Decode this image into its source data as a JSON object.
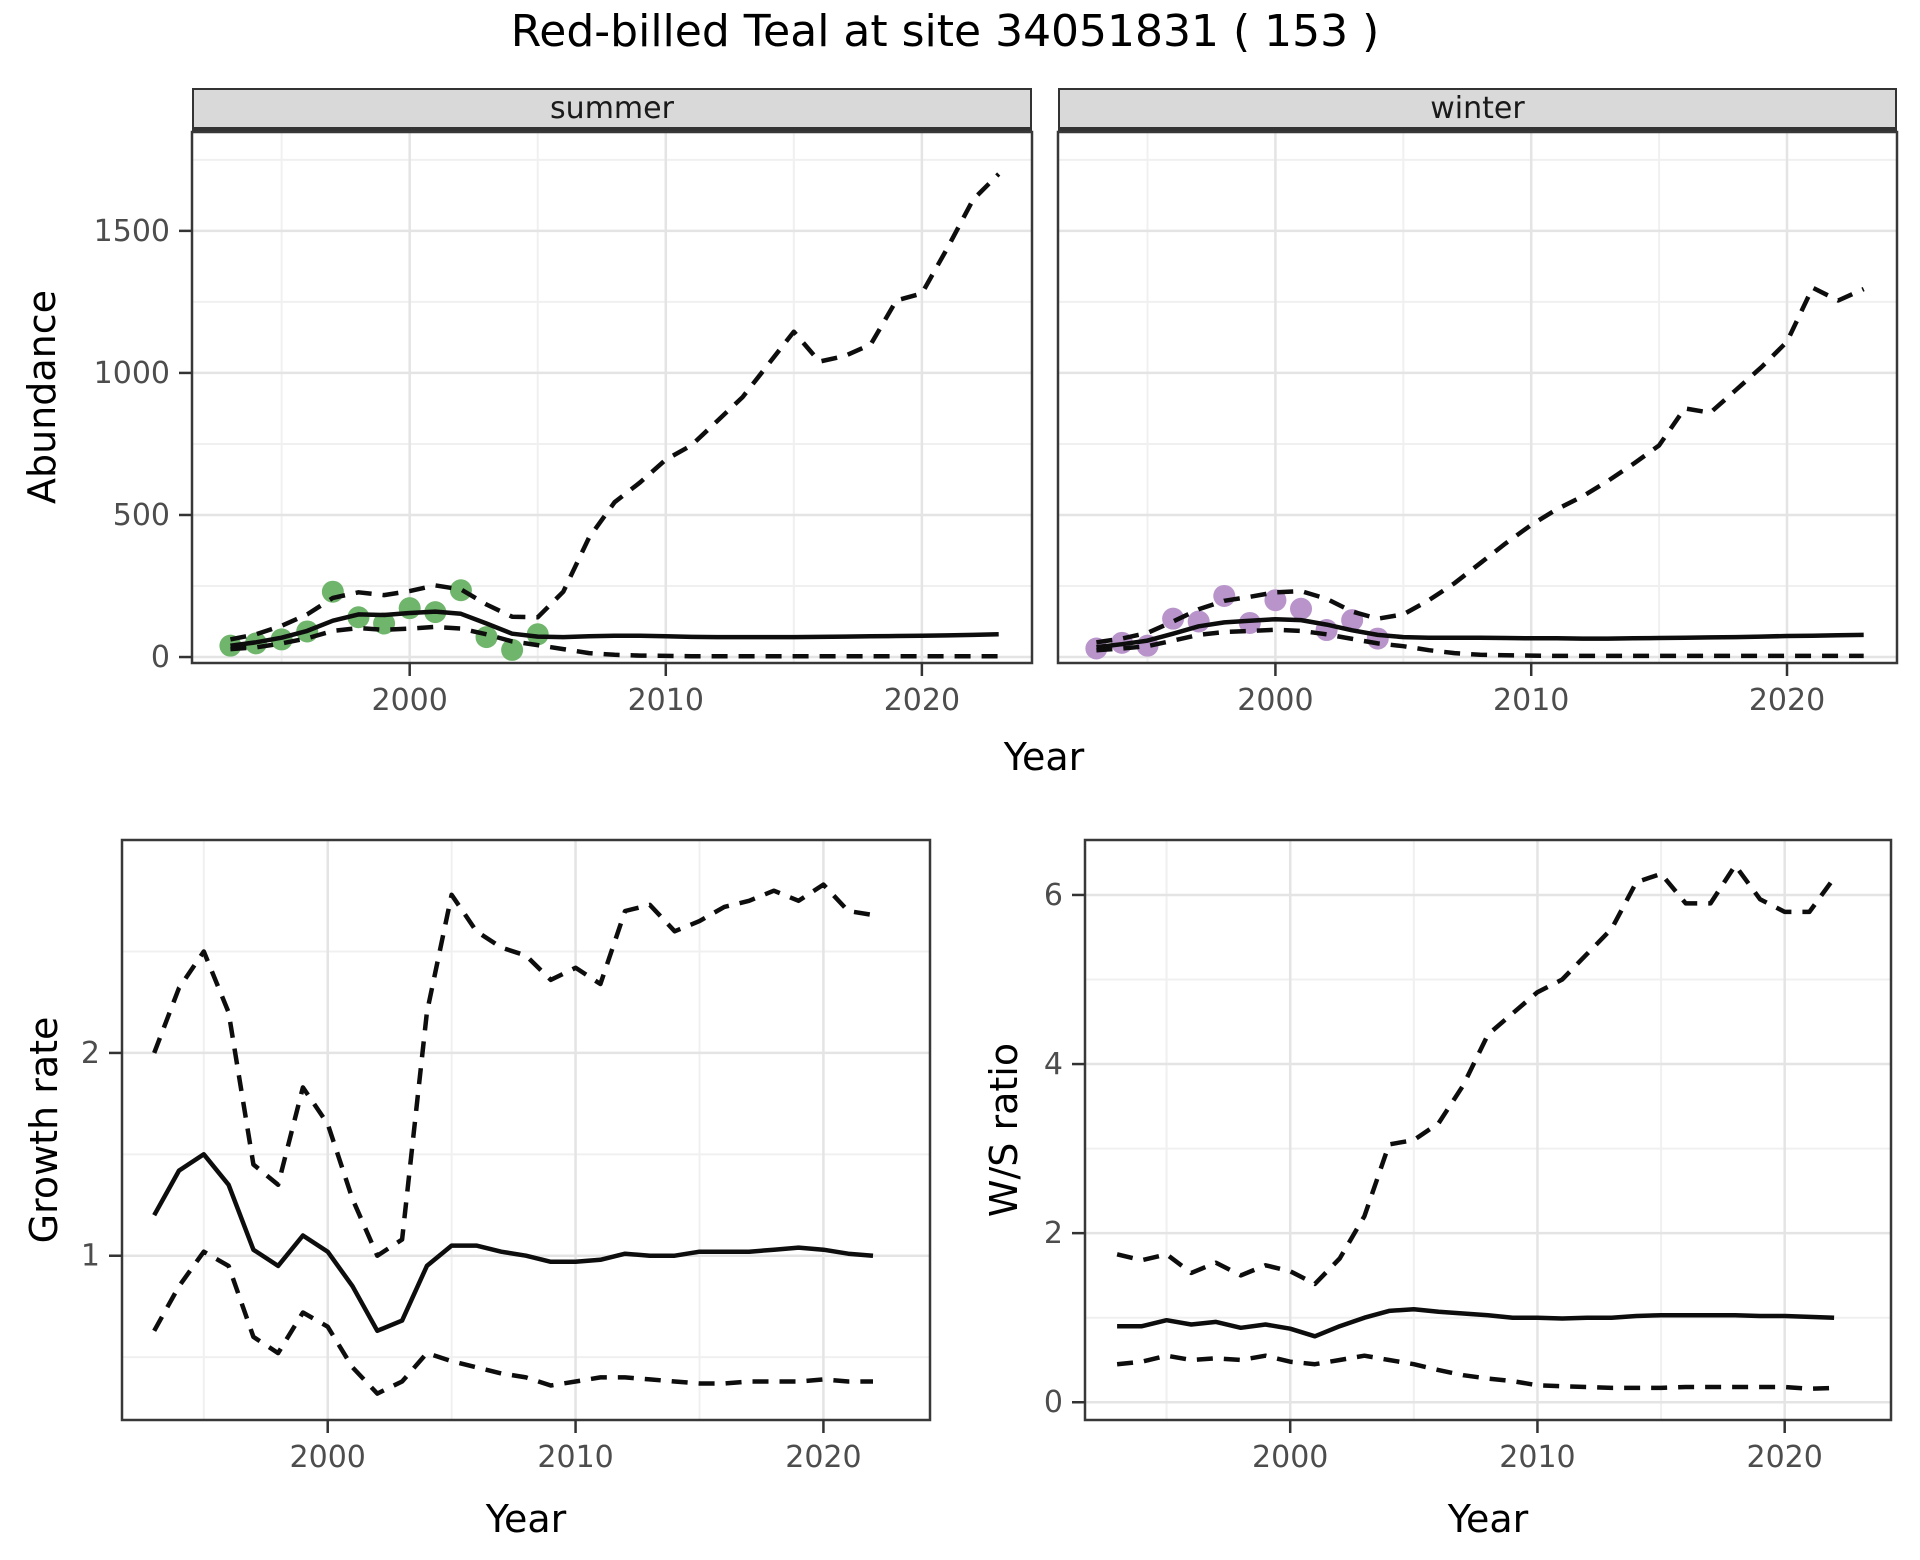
{
  "title": "Red-billed Teal at site 34051831 ( 153 )",
  "labels": {
    "x_axis": "Year"
  },
  "colors": {
    "summer_points": "#6FB56B",
    "winter_points": "#B894CB",
    "line": "#0d0d0d",
    "grid_major": "#e4e4e4",
    "grid_minor": "#f0f0f0",
    "panel_border": "#383838",
    "tick_text": "#4d4d4d",
    "strip_bg": "#d9d9d9"
  },
  "chart_data": [
    {
      "id": "abundance_summer",
      "type": "line",
      "facet": "summer",
      "xlabel": "Year",
      "ylabel": "Abundance",
      "xlim": [
        1991.5,
        2024.3
      ],
      "ylim": [
        -21,
        1848
      ],
      "xticks": [
        2000,
        2010,
        2020
      ],
      "xminor": [
        1995,
        2005,
        2015
      ],
      "yticks": [
        0,
        500,
        1000,
        1500
      ],
      "yminor": [
        250,
        750,
        1250,
        1750
      ],
      "x": [
        1993,
        1994,
        1995,
        1996,
        1997,
        1998,
        1999,
        2000,
        2001,
        2002,
        2003,
        2004,
        2005,
        2006,
        2007,
        2008,
        2009,
        2010,
        2011,
        2012,
        2013,
        2014,
        2015,
        2016,
        2017,
        2018,
        2019,
        2020,
        2021,
        2022,
        2023
      ],
      "series": [
        {
          "name": "fit",
          "style": "solid",
          "values": [
            40,
            52,
            68,
            92,
            128,
            150,
            148,
            155,
            160,
            152,
            118,
            82,
            72,
            70,
            73,
            75,
            75,
            73,
            71,
            70,
            70,
            70,
            70,
            71,
            72,
            73,
            74,
            75,
            76,
            78,
            80
          ]
        },
        {
          "name": "upper_ci",
          "style": "dashed",
          "values": [
            62,
            80,
            110,
            150,
            208,
            228,
            218,
            232,
            252,
            238,
            185,
            142,
            140,
            230,
            420,
            545,
            615,
            695,
            745,
            830,
            915,
            1030,
            1145,
            1040,
            1060,
            1100,
            1255,
            1280,
            1440,
            1610,
            1700
          ]
        },
        {
          "name": "lower_ci",
          "style": "dashed",
          "values": [
            28,
            34,
            48,
            66,
            92,
            102,
            96,
            100,
            106,
            100,
            80,
            55,
            42,
            28,
            14,
            8,
            5,
            4,
            3,
            3,
            3,
            3,
            3,
            3,
            3,
            3,
            3,
            3,
            3,
            3,
            3
          ]
        }
      ],
      "points": {
        "name": "observed-summer",
        "color": "#6FB56B",
        "x": [
          1993,
          1994,
          1995,
          1996,
          1997,
          1998,
          1999,
          2000,
          2001,
          2002,
          2003,
          2004,
          2005
        ],
        "y": [
          40,
          48,
          62,
          90,
          230,
          140,
          118,
          172,
          158,
          235,
          70,
          25,
          80
        ]
      }
    },
    {
      "id": "abundance_winter",
      "type": "line",
      "facet": "winter",
      "xlabel": "Year",
      "ylabel": "Abundance",
      "xlim": [
        1991.5,
        2024.3
      ],
      "ylim": [
        -21,
        1848
      ],
      "xticks": [
        2000,
        2010,
        2020
      ],
      "xminor": [
        1995,
        2005,
        2015
      ],
      "yticks": [
        0,
        500,
        1000,
        1500
      ],
      "yminor": [
        250,
        750,
        1250,
        1750
      ],
      "x": [
        1993,
        1994,
        1995,
        1996,
        1997,
        1998,
        1999,
        2000,
        2001,
        2002,
        2003,
        2004,
        2005,
        2006,
        2007,
        2008,
        2009,
        2010,
        2011,
        2012,
        2013,
        2014,
        2015,
        2016,
        2017,
        2018,
        2019,
        2020,
        2021,
        2022,
        2023
      ],
      "series": [
        {
          "name": "fit",
          "style": "solid",
          "values": [
            35,
            45,
            58,
            82,
            108,
            122,
            128,
            133,
            130,
            114,
            94,
            78,
            70,
            68,
            68,
            68,
            67,
            66,
            66,
            65,
            65,
            66,
            67,
            68,
            69,
            70,
            72,
            74,
            75,
            77,
            78
          ]
        },
        {
          "name": "upper_ci",
          "style": "dashed",
          "values": [
            52,
            65,
            85,
            125,
            168,
            198,
            212,
            228,
            232,
            205,
            160,
            135,
            150,
            200,
            260,
            330,
            400,
            465,
            520,
            565,
            620,
            680,
            745,
            875,
            860,
            940,
            1020,
            1110,
            1300,
            1255,
            1295
          ]
        },
        {
          "name": "lower_ci",
          "style": "dashed",
          "values": [
            24,
            30,
            38,
            58,
            78,
            88,
            92,
            96,
            92,
            80,
            64,
            48,
            38,
            24,
            14,
            8,
            6,
            5,
            4,
            4,
            4,
            4,
            4,
            4,
            4,
            4,
            4,
            4,
            4,
            4,
            4
          ]
        }
      ],
      "points": {
        "name": "observed-winter",
        "color": "#B894CB",
        "x": [
          1993,
          1994,
          1995,
          1996,
          1997,
          1998,
          1999,
          2000,
          2001,
          2002,
          2003,
          2004
        ],
        "y": [
          30,
          50,
          40,
          135,
          125,
          215,
          120,
          200,
          170,
          95,
          130,
          65
        ]
      }
    },
    {
      "id": "growth_rate",
      "type": "line",
      "facet": null,
      "xlabel": "Year",
      "ylabel": "Growth rate",
      "xlim": [
        1991.7,
        2024.3
      ],
      "ylim": [
        0.19,
        3.05
      ],
      "xticks": [
        2000,
        2010,
        2020
      ],
      "xminor": [
        1995,
        2005,
        2015
      ],
      "yticks": [
        1,
        2
      ],
      "yminor": [
        0.5,
        1.5,
        2.5
      ],
      "x": [
        1993,
        1994,
        1995,
        1996,
        1997,
        1998,
        1999,
        2000,
        2001,
        2002,
        2003,
        2004,
        2005,
        2006,
        2007,
        2008,
        2009,
        2010,
        2011,
        2012,
        2013,
        2014,
        2015,
        2016,
        2017,
        2018,
        2019,
        2020,
        2021,
        2022
      ],
      "series": [
        {
          "name": "fit",
          "style": "solid",
          "values": [
            1.2,
            1.42,
            1.5,
            1.35,
            1.03,
            0.95,
            1.1,
            1.02,
            0.85,
            0.63,
            0.68,
            0.95,
            1.05,
            1.05,
            1.02,
            1.0,
            0.97,
            0.97,
            0.98,
            1.01,
            1.0,
            1.0,
            1.02,
            1.02,
            1.02,
            1.03,
            1.04,
            1.03,
            1.01,
            1.0
          ]
        },
        {
          "name": "upper_ci",
          "style": "dashed",
          "values": [
            2.0,
            2.32,
            2.5,
            2.2,
            1.45,
            1.35,
            1.83,
            1.65,
            1.28,
            1.0,
            1.08,
            2.2,
            2.78,
            2.6,
            2.52,
            2.48,
            2.36,
            2.42,
            2.34,
            2.7,
            2.73,
            2.6,
            2.65,
            2.72,
            2.75,
            2.8,
            2.75,
            2.83,
            2.7,
            2.68
          ]
        },
        {
          "name": "lower_ci",
          "style": "dashed",
          "values": [
            0.63,
            0.85,
            1.02,
            0.95,
            0.6,
            0.52,
            0.72,
            0.65,
            0.45,
            0.32,
            0.38,
            0.52,
            0.48,
            0.45,
            0.42,
            0.4,
            0.36,
            0.38,
            0.4,
            0.4,
            0.39,
            0.38,
            0.37,
            0.37,
            0.38,
            0.38,
            0.38,
            0.39,
            0.38,
            0.38
          ]
        }
      ],
      "points": null
    },
    {
      "id": "ws_ratio",
      "type": "line",
      "facet": null,
      "xlabel": "Year",
      "ylabel": "W/S ratio",
      "xlim": [
        1991.7,
        2024.3
      ],
      "ylim": [
        -0.21,
        6.65
      ],
      "xticks": [
        2000,
        2010,
        2020
      ],
      "xminor": [
        1995,
        2005,
        2015
      ],
      "yticks": [
        0,
        2,
        4,
        6
      ],
      "yminor": [
        1,
        3,
        5
      ],
      "x": [
        1993,
        1994,
        1995,
        1996,
        1997,
        1998,
        1999,
        2000,
        2001,
        2002,
        2003,
        2004,
        2005,
        2006,
        2007,
        2008,
        2009,
        2010,
        2011,
        2012,
        2013,
        2014,
        2015,
        2016,
        2017,
        2018,
        2019,
        2020,
        2021,
        2022
      ],
      "series": [
        {
          "name": "fit",
          "style": "solid",
          "values": [
            0.9,
            0.9,
            0.97,
            0.92,
            0.95,
            0.88,
            0.92,
            0.87,
            0.78,
            0.9,
            1.0,
            1.08,
            1.1,
            1.07,
            1.05,
            1.03,
            1.0,
            1.0,
            0.99,
            1.0,
            1.0,
            1.02,
            1.03,
            1.03,
            1.03,
            1.03,
            1.02,
            1.02,
            1.01,
            1.0
          ]
        },
        {
          "name": "upper_ci",
          "style": "dashed",
          "values": [
            1.75,
            1.68,
            1.75,
            1.53,
            1.65,
            1.5,
            1.62,
            1.55,
            1.4,
            1.7,
            2.2,
            3.05,
            3.1,
            3.3,
            3.75,
            4.35,
            4.6,
            4.85,
            5.0,
            5.3,
            5.6,
            6.15,
            6.25,
            5.9,
            5.9,
            6.35,
            5.95,
            5.8,
            5.8,
            6.2
          ]
        },
        {
          "name": "lower_ci",
          "style": "dashed",
          "values": [
            0.45,
            0.48,
            0.55,
            0.5,
            0.52,
            0.5,
            0.55,
            0.48,
            0.45,
            0.5,
            0.55,
            0.5,
            0.45,
            0.38,
            0.32,
            0.28,
            0.25,
            0.2,
            0.19,
            0.18,
            0.17,
            0.17,
            0.17,
            0.18,
            0.18,
            0.18,
            0.18,
            0.18,
            0.16,
            0.17
          ]
        }
      ],
      "points": null
    }
  ]
}
